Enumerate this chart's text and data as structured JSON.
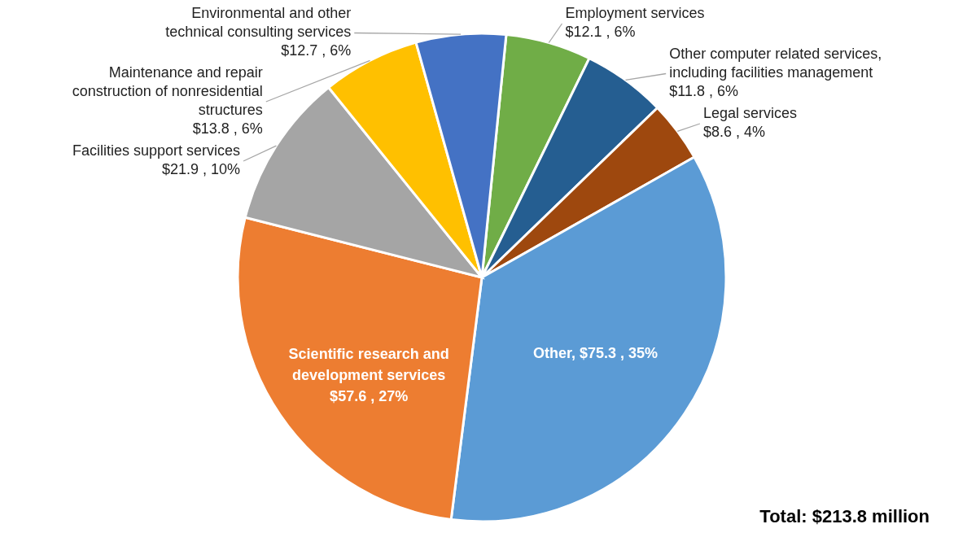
{
  "chart_data": {
    "type": "pie",
    "categories": [
      "Employment services",
      "Other computer related services, including facilities management",
      "Legal services",
      "Other",
      "Scientific research and development services",
      "Facilities support services",
      "Maintenance and repair construction of nonresidential structures",
      "Environmental and other technical consulting services"
    ],
    "values": [
      12.1,
      11.8,
      8.6,
      75.3,
      57.6,
      21.9,
      13.8,
      12.7
    ],
    "colors": [
      "#70ad47",
      "#255e91",
      "#9e480e",
      "#5b9bd5",
      "#ed7d31",
      "#a5a5a5",
      "#ffc000",
      "#4472c4"
    ],
    "value_labels": [
      "$12.1 , 6%",
      "$11.8 , 6%",
      "$8.6 , 4%",
      "$75.3 , 35%",
      "$57.6 , 27%",
      "$21.9 , 10%",
      "$13.8 , 6%",
      "$12.7 , 6%"
    ],
    "annotations": [
      "Total: $213.8 million"
    ]
  }
}
